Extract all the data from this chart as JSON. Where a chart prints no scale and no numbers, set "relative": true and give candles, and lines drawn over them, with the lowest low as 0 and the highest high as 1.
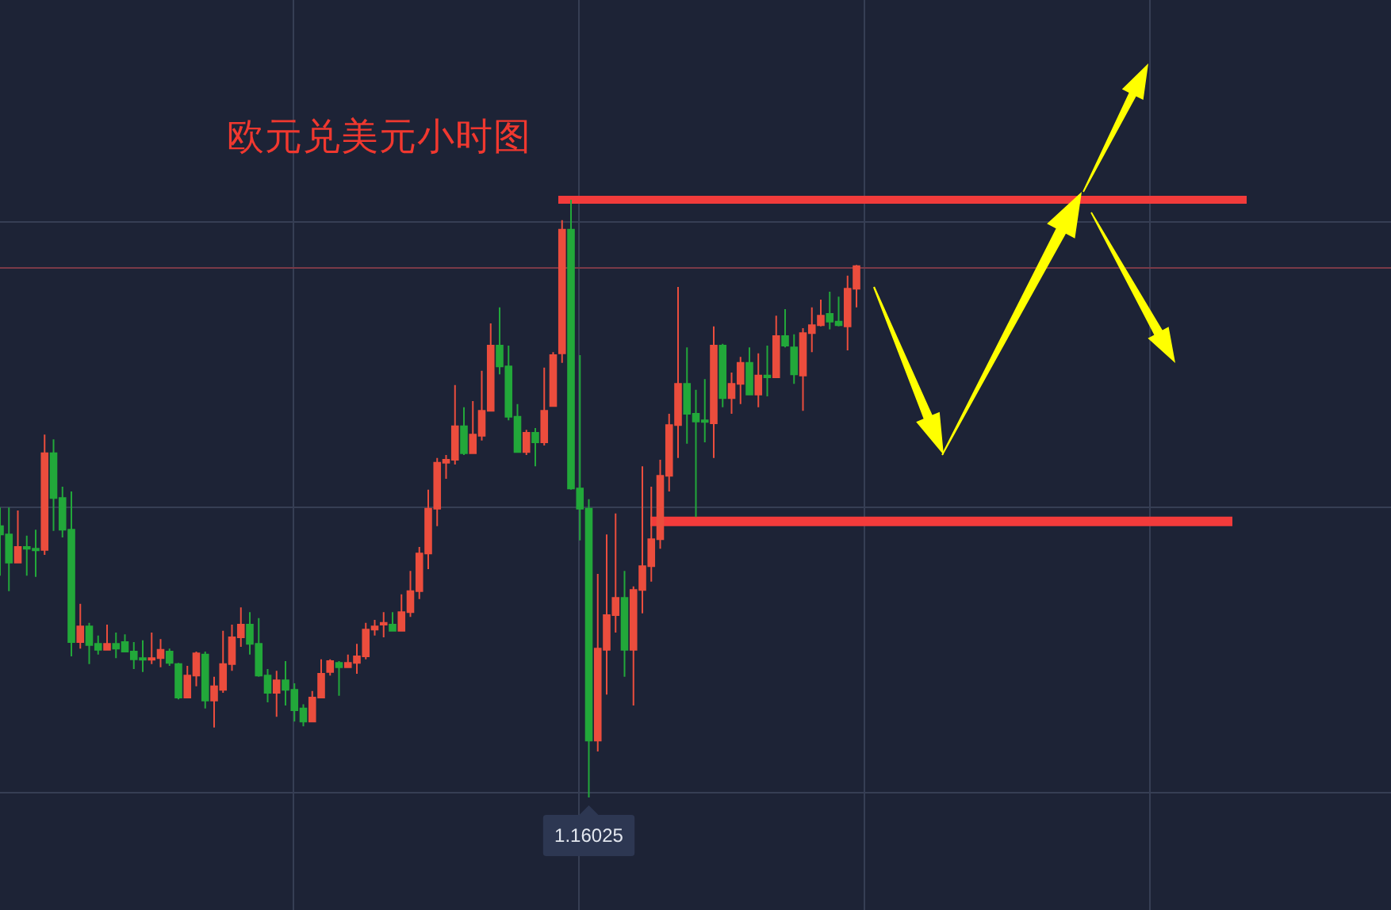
{
  "chart_data": {
    "type": "candlestick",
    "title": "欧元兑美元小时图",
    "relative": true,
    "grid": true,
    "categories": [
      null,
      null,
      null,
      null,
      null,
      null,
      null,
      null,
      null,
      null,
      null,
      null,
      null,
      null,
      null,
      null,
      null,
      null,
      null,
      null,
      null,
      null,
      null,
      null,
      null,
      null,
      null,
      null,
      null,
      null,
      null,
      null,
      null,
      null,
      null,
      null,
      null,
      null,
      null,
      null,
      null,
      null,
      null,
      null,
      null,
      null,
      null,
      null,
      null,
      null,
      null,
      null,
      null,
      null,
      null,
      null,
      null,
      null,
      null,
      null,
      null,
      null,
      null,
      null,
      null,
      null,
      null,
      null,
      null,
      null,
      null,
      null,
      null,
      null,
      null,
      null,
      null,
      null,
      null,
      null,
      null,
      null,
      null,
      null,
      null,
      null,
      null,
      null,
      null,
      null,
      null,
      null,
      null,
      null,
      null,
      null,
      null
    ],
    "ohlc": [
      [
        0.454,
        0.485,
        0.371,
        0.44
      ],
      [
        0.44,
        0.485,
        0.345,
        0.393
      ],
      [
        0.393,
        0.48,
        0.393,
        0.419
      ],
      [
        0.419,
        0.438,
        0.371,
        0.416
      ],
      [
        0.416,
        0.448,
        0.369,
        0.414
      ],
      [
        0.414,
        0.607,
        0.406,
        0.576
      ],
      [
        0.576,
        0.599,
        0.446,
        0.501
      ],
      [
        0.501,
        0.52,
        0.435,
        0.448
      ],
      [
        0.448,
        0.512,
        0.236,
        0.26
      ],
      [
        0.26,
        0.324,
        0.249,
        0.286
      ],
      [
        0.286,
        0.292,
        0.223,
        0.255
      ],
      [
        0.257,
        0.271,
        0.239,
        0.247
      ],
      [
        0.247,
        0.289,
        0.247,
        0.257
      ],
      [
        0.257,
        0.276,
        0.233,
        0.249
      ],
      [
        0.26,
        0.273,
        0.244,
        0.244
      ],
      [
        0.244,
        0.26,
        0.215,
        0.231
      ],
      [
        0.233,
        0.263,
        0.21,
        0.231
      ],
      [
        0.231,
        0.276,
        0.223,
        0.233
      ],
      [
        0.233,
        0.265,
        0.218,
        0.247
      ],
      [
        0.244,
        0.249,
        0.22,
        0.225
      ],
      [
        0.223,
        0.225,
        0.164,
        0.167
      ],
      [
        0.167,
        0.22,
        0.167,
        0.204
      ],
      [
        0.204,
        0.244,
        0.186,
        0.241
      ],
      [
        0.239,
        0.244,
        0.149,
        0.162
      ],
      [
        0.162,
        0.202,
        0.117,
        0.186
      ],
      [
        0.18,
        0.279,
        0.175,
        0.223
      ],
      [
        0.223,
        0.289,
        0.212,
        0.268
      ],
      [
        0.268,
        0.318,
        0.252,
        0.289
      ],
      [
        0.289,
        0.31,
        0.239,
        0.257
      ],
      [
        0.257,
        0.3,
        0.202,
        0.204
      ],
      [
        0.204,
        0.215,
        0.159,
        0.175
      ],
      [
        0.175,
        0.212,
        0.135,
        0.196
      ],
      [
        0.196,
        0.228,
        0.154,
        0.18
      ],
      [
        0.18,
        0.191,
        0.127,
        0.146
      ],
      [
        0.149,
        0.156,
        0.119,
        0.127
      ],
      [
        0.127,
        0.178,
        0.127,
        0.167
      ],
      [
        0.167,
        0.231,
        0.167,
        0.207
      ],
      [
        0.21,
        0.231,
        0.204,
        0.228
      ],
      [
        0.225,
        0.228,
        0.17,
        0.218
      ],
      [
        0.218,
        0.239,
        0.218,
        0.225
      ],
      [
        0.225,
        0.257,
        0.207,
        0.236
      ],
      [
        0.236,
        0.292,
        0.231,
        0.281
      ],
      [
        0.281,
        0.297,
        0.271,
        0.286
      ],
      [
        0.289,
        0.31,
        0.268,
        0.292
      ],
      [
        0.289,
        0.31,
        0.279,
        0.279
      ],
      [
        0.279,
        0.34,
        0.279,
        0.31
      ],
      [
        0.31,
        0.379,
        0.302,
        0.345
      ],
      [
        0.345,
        0.419,
        0.332,
        0.408
      ],
      [
        0.408,
        0.515,
        0.382,
        0.483
      ],
      [
        0.483,
        0.568,
        0.454,
        0.56
      ],
      [
        0.56,
        0.573,
        0.533,
        0.565
      ],
      [
        0.565,
        0.69,
        0.557,
        0.621
      ],
      [
        0.621,
        0.653,
        0.573,
        0.576
      ],
      [
        0.576,
        0.663,
        0.576,
        0.607
      ],
      [
        0.605,
        0.714,
        0.597,
        0.647
      ],
      [
        0.647,
        0.793,
        0.647,
        0.756
      ],
      [
        0.756,
        0.82,
        0.708,
        0.721
      ],
      [
        0.721,
        0.756,
        0.631,
        0.637
      ],
      [
        0.637,
        0.658,
        0.578,
        0.578
      ],
      [
        0.578,
        0.615,
        0.573,
        0.61
      ],
      [
        0.61,
        0.618,
        0.554,
        0.594
      ],
      [
        0.594,
        0.719,
        0.589,
        0.647
      ],
      [
        0.655,
        0.745,
        0.655,
        0.74
      ],
      [
        0.743,
        0.966,
        0.727,
        0.95
      ],
      [
        0.95,
        1.0,
        0.515,
        0.517
      ],
      [
        0.517,
        0.74,
        0.43,
        0.483
      ],
      [
        0.483,
        0.499,
        0.0,
        0.095
      ],
      [
        0.095,
        0.374,
        0.077,
        0.249
      ],
      [
        0.247,
        0.44,
        0.172,
        0.305
      ],
      [
        0.305,
        0.475,
        0.276,
        0.334
      ],
      [
        0.334,
        0.379,
        0.202,
        0.247
      ],
      [
        0.247,
        0.353,
        0.154,
        0.347
      ],
      [
        0.347,
        0.554,
        0.308,
        0.387
      ],
      [
        0.387,
        0.52,
        0.361,
        0.432
      ],
      [
        0.432,
        0.565,
        0.416,
        0.538
      ],
      [
        0.538,
        0.642,
        0.512,
        0.623
      ],
      [
        0.623,
        0.854,
        0.568,
        0.692
      ],
      [
        0.692,
        0.753,
        0.592,
        0.642
      ],
      [
        0.642,
        0.682,
        0.469,
        0.629
      ],
      [
        0.631,
        0.7,
        0.594,
        0.629
      ],
      [
        0.626,
        0.788,
        0.568,
        0.756
      ],
      [
        0.756,
        0.759,
        0.653,
        0.668
      ],
      [
        0.668,
        0.711,
        0.642,
        0.692
      ],
      [
        0.692,
        0.737,
        0.658,
        0.727
      ],
      [
        0.727,
        0.753,
        0.674,
        0.674
      ],
      [
        0.674,
        0.743,
        0.653,
        0.706
      ],
      [
        0.706,
        0.756,
        0.671,
        0.703
      ],
      [
        0.703,
        0.806,
        0.703,
        0.772
      ],
      [
        0.772,
        0.817,
        0.753,
        0.756
      ],
      [
        0.753,
        0.775,
        0.692,
        0.708
      ],
      [
        0.706,
        0.785,
        0.647,
        0.777
      ],
      [
        0.777,
        0.82,
        0.745,
        0.79
      ],
      [
        0.79,
        0.833,
        0.788,
        0.806
      ],
      [
        0.809,
        0.846,
        0.783,
        0.796
      ],
      [
        0.796,
        0.838,
        0.788,
        0.79
      ],
      [
        0.788,
        0.873,
        0.748,
        0.851
      ],
      [
        0.851,
        0.891,
        0.82,
        0.889
      ]
    ],
    "colors": [
      "#22a83a",
      "#22a83a",
      "#eb4d3d",
      "#22a83a",
      "#22a83a",
      "#eb4d3d",
      "#22a83a",
      "#22a83a",
      "#22a83a",
      "#eb4d3d",
      "#22a83a",
      "#22a83a",
      "#eb4d3d",
      "#22a83a",
      "#22a83a",
      "#22a83a",
      "#22a83a",
      "#eb4d3d",
      "#eb4d3d",
      "#22a83a",
      "#22a83a",
      "#eb4d3d",
      "#eb4d3d",
      "#22a83a",
      "#eb4d3d",
      "#eb4d3d",
      "#eb4d3d",
      "#eb4d3d",
      "#22a83a",
      "#22a83a",
      "#22a83a",
      "#eb4d3d",
      "#22a83a",
      "#22a83a",
      "#22a83a",
      "#eb4d3d",
      "#eb4d3d",
      "#eb4d3d",
      "#22a83a",
      "#eb4d3d",
      "#eb4d3d",
      "#eb4d3d",
      "#eb4d3d",
      "#eb4d3d",
      "#22a83a",
      "#eb4d3d",
      "#eb4d3d",
      "#eb4d3d",
      "#eb4d3d",
      "#eb4d3d",
      "#eb4d3d",
      "#eb4d3d",
      "#22a83a",
      "#eb4d3d",
      "#eb4d3d",
      "#eb4d3d",
      "#22a83a",
      "#22a83a",
      "#22a83a",
      "#eb4d3d",
      "#22a83a",
      "#eb4d3d",
      "#eb4d3d",
      "#eb4d3d",
      "#22a83a",
      "#22a83a",
      "#22a83a",
      "#eb4d3d",
      "#eb4d3d",
      "#eb4d3d",
      "#22a83a",
      "#eb4d3d",
      "#eb4d3d",
      "#eb4d3d",
      "#eb4d3d",
      "#eb4d3d",
      "#eb4d3d",
      "#22a83a",
      "#22a83a",
      "#22a83a",
      "#eb4d3d",
      "#22a83a",
      "#eb4d3d",
      "#eb4d3d",
      "#22a83a",
      "#eb4d3d",
      "#22a83a",
      "#eb4d3d",
      "#22a83a",
      "#22a83a",
      "#eb4d3d",
      "#eb4d3d",
      "#eb4d3d",
      "#22a83a",
      "#22a83a",
      "#eb4d3d",
      "#eb4d3d"
    ],
    "ref_lines": [
      {
        "axis": "y",
        "value": 1.0,
        "color": "#f23b3b"
      },
      {
        "axis": "y",
        "value": 0.462,
        "color": "#f23b3b"
      },
      {
        "axis": "y",
        "value": 0.886,
        "color": "#7a3a48"
      }
    ],
    "annotations": [
      {
        "text": "1.16025",
        "y": 0
      }
    ]
  }
}
